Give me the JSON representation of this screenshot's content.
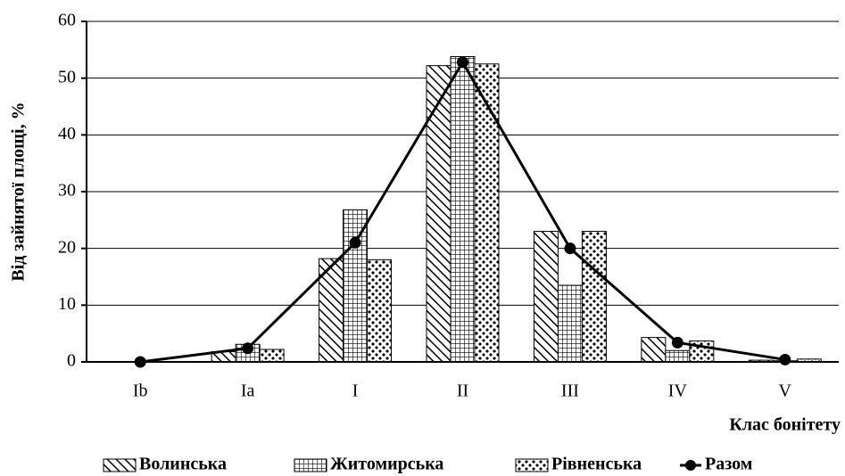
{
  "chart_data": {
    "type": "bar",
    "x_label": "Клас бонітету",
    "y_label": "Від зайнятої площі, %",
    "categories": [
      "Ib",
      "Ia",
      "I",
      "II",
      "III",
      "IV",
      "V"
    ],
    "series": [
      {
        "name": "Волинська",
        "color": "#000000",
        "pattern": "diagonal",
        "values": [
          0,
          1.8,
          18.2,
          52.2,
          23,
          4.3,
          0.3
        ]
      },
      {
        "name": "Житомирська",
        "color": "#000000",
        "pattern": "grid",
        "values": [
          0,
          3.1,
          26.8,
          53.8,
          13.5,
          2.0,
          0.2
        ]
      },
      {
        "name": "Рівненська",
        "color": "#000000",
        "pattern": "dots",
        "values": [
          0,
          2.2,
          18,
          52.5,
          23,
          3.7,
          0.5
        ]
      },
      {
        "name": "Разом",
        "color": "#000000",
        "type": "line",
        "values": [
          0,
          2.4,
          21,
          52.8,
          20,
          3.4,
          0.4
        ]
      }
    ],
    "ylim": [
      0,
      60
    ],
    "yticks": [
      0,
      10,
      20,
      30,
      40,
      50,
      60
    ],
    "grid": true,
    "legend": "bottom"
  }
}
